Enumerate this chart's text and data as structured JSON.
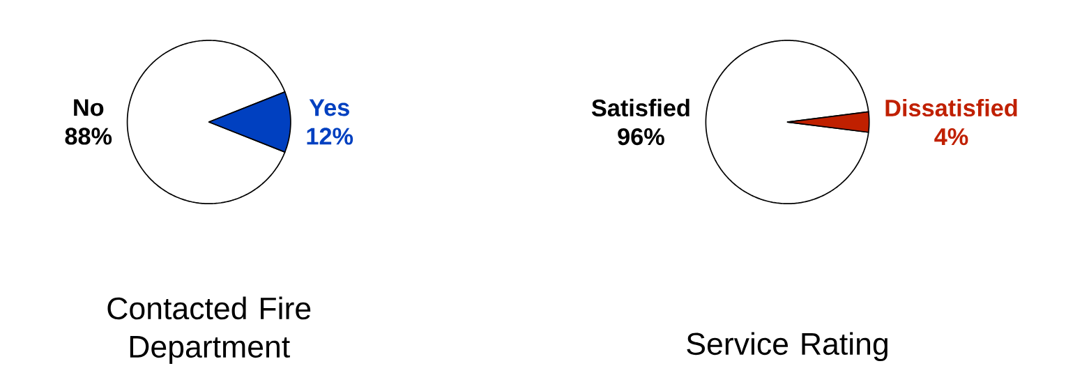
{
  "chart_data": [
    {
      "type": "pie",
      "title": "Contacted Fire Department",
      "categories": [
        "No",
        "Yes"
      ],
      "values": [
        88,
        12
      ],
      "value_labels": [
        "88%",
        "12%"
      ],
      "colors": [
        "#ffffff",
        "#0040c0"
      ]
    },
    {
      "type": "pie",
      "title": "Service Rating",
      "categories": [
        "Satisfied",
        "Dissatisfied"
      ],
      "values": [
        96,
        4
      ],
      "value_labels": [
        "96%",
        "4%"
      ],
      "colors": [
        "#ffffff",
        "#c02000"
      ]
    }
  ]
}
